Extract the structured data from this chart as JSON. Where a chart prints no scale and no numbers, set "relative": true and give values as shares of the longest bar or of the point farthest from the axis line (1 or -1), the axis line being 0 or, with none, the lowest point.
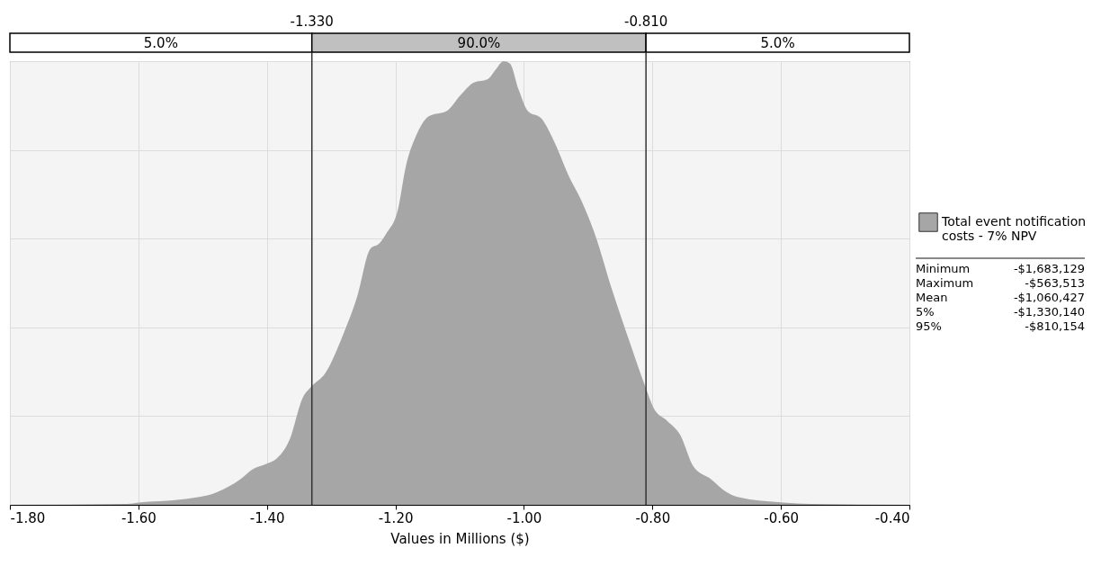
{
  "chart_data": {
    "type": "area",
    "relative": true,
    "xlabel": "Values in Millions ($)",
    "xlim": [
      -1.8,
      -0.4
    ],
    "xticks": [
      {
        "value": -1.8,
        "label": "-1.80"
      },
      {
        "value": -1.6,
        "label": "-1.60"
      },
      {
        "value": -1.4,
        "label": "-1.40"
      },
      {
        "value": -1.2,
        "label": "-1.20"
      },
      {
        "value": -1.0,
        "label": "-1.00"
      },
      {
        "value": -0.8,
        "label": "-0.80"
      },
      {
        "value": -0.6,
        "label": "-0.60"
      },
      {
        "value": -0.4,
        "label": "-0.40"
      }
    ],
    "x": [
      -1.8,
      -1.617,
      -1.6,
      -1.533,
      -1.477,
      -1.442,
      -1.421,
      -1.4,
      -1.386,
      -1.365,
      -1.344,
      -1.331,
      -1.309,
      -1.281,
      -1.26,
      -1.239,
      -1.225,
      -1.214,
      -1.197,
      -1.183,
      -1.169,
      -1.148,
      -1.12,
      -1.099,
      -1.078,
      -1.057,
      -1.043,
      -1.032,
      -1.022,
      -1.008,
      -0.994,
      -0.973,
      -0.952,
      -0.931,
      -0.91,
      -0.89,
      -0.862,
      -0.834,
      -0.811,
      -0.798,
      -0.777,
      -0.757,
      -0.736,
      -0.708,
      -0.687,
      -0.666,
      -0.596,
      -0.554,
      -0.4
    ],
    "series": [
      {
        "name": "Total event notification costs - 7% NPV",
        "color": "#a6a6a6",
        "values": [
          0,
          0.002,
          0.005,
          0.012,
          0.029,
          0.057,
          0.081,
          0.093,
          0.103,
          0.146,
          0.242,
          0.266,
          0.297,
          0.385,
          0.467,
          0.577,
          0.589,
          0.612,
          0.66,
          0.768,
          0.828,
          0.876,
          0.888,
          0.923,
          0.952,
          0.959,
          0.983,
          1,
          0.995,
          0.935,
          0.888,
          0.871,
          0.816,
          0.744,
          0.684,
          0.612,
          0.481,
          0.361,
          0.266,
          0.218,
          0.189,
          0.158,
          0.086,
          0.057,
          0.031,
          0.017,
          0.005,
          0.002,
          0
        ]
      }
    ],
    "ref_lines": [
      {
        "axis": "x",
        "value": -1.33,
        "label": "-1.330"
      },
      {
        "axis": "x",
        "value": -0.81,
        "label": "-0.810"
      }
    ],
    "annotations": [
      "5.0%",
      "90.0%",
      "5.0%",
      "Minimum",
      "-$1,683,129",
      "Maximum",
      "-$563,513",
      "Mean",
      "-$1,060,427",
      "5%",
      "-$1,330,140",
      "95%",
      "-$810,154"
    ],
    "grid": true,
    "legend": "right"
  }
}
